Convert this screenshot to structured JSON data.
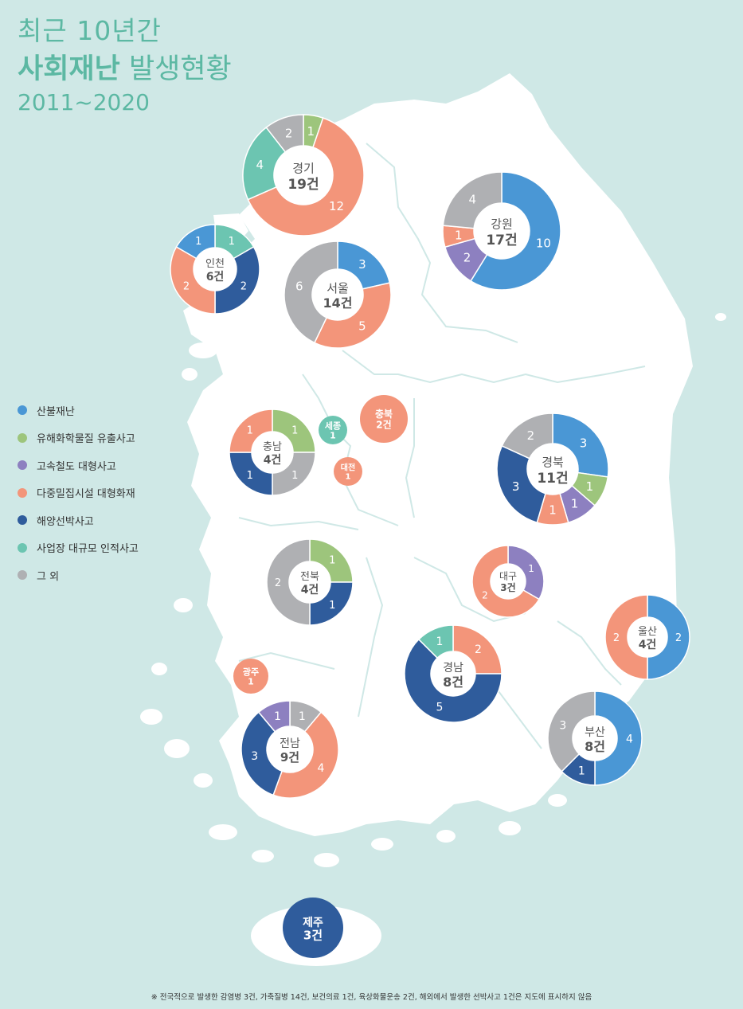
{
  "title": {
    "line1": "최근 10년간",
    "line2_bold": "사회재난",
    "line2_rest": " 발생현황",
    "period": "2011~2020"
  },
  "colors": {
    "sanbul": "#4a97d5",
    "yuhae": "#9dc57c",
    "goseok": "#8d80c0",
    "dajung": "#f3957a",
    "haeyang": "#2f5c9c",
    "saeop": "#6cc5b1",
    "etc": "#afb0b3"
  },
  "legend": [
    {
      "key": "sanbul",
      "label": "산불재난"
    },
    {
      "key": "yuhae",
      "label": "유해화학물질 유출사고"
    },
    {
      "key": "goseok",
      "label": "고속철도 대형사고"
    },
    {
      "key": "dajung",
      "label": "다중밀집시설 대형화재"
    },
    {
      "key": "haeyang",
      "label": "해양선박사고"
    },
    {
      "key": "saeop",
      "label": "사업장 대규모 인적사고"
    },
    {
      "key": "etc",
      "label": "그 외"
    }
  ],
  "regions": [
    {
      "id": "gyeonggi",
      "name": "경기",
      "total": "19건",
      "slices": [
        {
          "key": "yuhae",
          "value": 1
        },
        {
          "key": "dajung",
          "value": 12
        },
        {
          "key": "saeop",
          "value": 4
        },
        {
          "key": "etc",
          "value": 2
        }
      ]
    },
    {
      "id": "gangwon",
      "name": "강원",
      "total": "17건",
      "slices": [
        {
          "key": "sanbul",
          "value": 10
        },
        {
          "key": "goseok",
          "value": 2
        },
        {
          "key": "dajung",
          "value": 1
        },
        {
          "key": "etc",
          "value": 4
        }
      ]
    },
    {
      "id": "incheon",
      "name": "인천",
      "total": "6건",
      "slices": [
        {
          "key": "saeop",
          "value": 1
        },
        {
          "key": "haeyang",
          "value": 2
        },
        {
          "key": "dajung",
          "value": 2
        },
        {
          "key": "sanbul",
          "value": 1
        }
      ]
    },
    {
      "id": "seoul",
      "name": "서울",
      "total": "14건",
      "slices": [
        {
          "key": "sanbul",
          "value": 3
        },
        {
          "key": "dajung",
          "value": 5
        },
        {
          "key": "etc",
          "value": 6
        }
      ]
    },
    {
      "id": "chungnam",
      "name": "충남",
      "total": "4건",
      "slices": [
        {
          "key": "yuhae",
          "value": 1
        },
        {
          "key": "etc",
          "value": 1
        },
        {
          "key": "haeyang",
          "value": 1
        },
        {
          "key": "dajung",
          "value": 1
        }
      ]
    },
    {
      "id": "sejong",
      "name": "세종",
      "total": "1",
      "slices": [
        {
          "key": "saeop",
          "value": 1
        }
      ]
    },
    {
      "id": "chungbuk",
      "name": "충북",
      "total": "2건",
      "slices": [
        {
          "key": "dajung",
          "value": 2
        }
      ]
    },
    {
      "id": "daejeon",
      "name": "대전",
      "total": "1",
      "slices": [
        {
          "key": "dajung",
          "value": 1
        }
      ]
    },
    {
      "id": "gyeongbuk",
      "name": "경북",
      "total": "11건",
      "slices": [
        {
          "key": "sanbul",
          "value": 3
        },
        {
          "key": "yuhae",
          "value": 1
        },
        {
          "key": "goseok",
          "value": 1
        },
        {
          "key": "dajung",
          "value": 1
        },
        {
          "key": "haeyang",
          "value": 3
        },
        {
          "key": "etc",
          "value": 2
        }
      ]
    },
    {
      "id": "jeonbuk",
      "name": "전북",
      "total": "4건",
      "slices": [
        {
          "key": "yuhae",
          "value": 1
        },
        {
          "key": "haeyang",
          "value": 1
        },
        {
          "key": "etc",
          "value": 2
        }
      ]
    },
    {
      "id": "daegu",
      "name": "대구",
      "total": "3건",
      "slices": [
        {
          "key": "goseok",
          "value": 1
        },
        {
          "key": "dajung",
          "value": 2
        }
      ]
    },
    {
      "id": "ulsan",
      "name": "울산",
      "total": "4건",
      "slices": [
        {
          "key": "sanbul",
          "value": 2
        },
        {
          "key": "dajung",
          "value": 2
        }
      ]
    },
    {
      "id": "gwangju",
      "name": "광주",
      "total": "1",
      "slices": [
        {
          "key": "dajung",
          "value": 1
        }
      ]
    },
    {
      "id": "gyeongnam",
      "name": "경남",
      "total": "8건",
      "slices": [
        {
          "key": "dajung",
          "value": 2
        },
        {
          "key": "haeyang",
          "value": 5
        },
        {
          "key": "saeop",
          "value": 1
        }
      ]
    },
    {
      "id": "busan",
      "name": "부산",
      "total": "8건",
      "slices": [
        {
          "key": "sanbul",
          "value": 4
        },
        {
          "key": "haeyang",
          "value": 1
        },
        {
          "key": "etc",
          "value": 3
        }
      ]
    },
    {
      "id": "jeonnam",
      "name": "전남",
      "total": "9건",
      "slices": [
        {
          "key": "etc",
          "value": 1
        },
        {
          "key": "dajung",
          "value": 4
        },
        {
          "key": "haeyang",
          "value": 3
        },
        {
          "key": "goseok",
          "value": 1
        }
      ]
    },
    {
      "id": "jeju",
      "name": "제주",
      "total": "3건",
      "slices": [
        {
          "key": "haeyang",
          "value": 3
        }
      ]
    }
  ],
  "footnote": "※ 전국적으로 발생한 감염병 3건, 가축질병 14건, 보건의료 1건, 육상화물운송 2건, 해외에서 발생한 선박사고 1건은 지도에 표시하지 않음"
}
